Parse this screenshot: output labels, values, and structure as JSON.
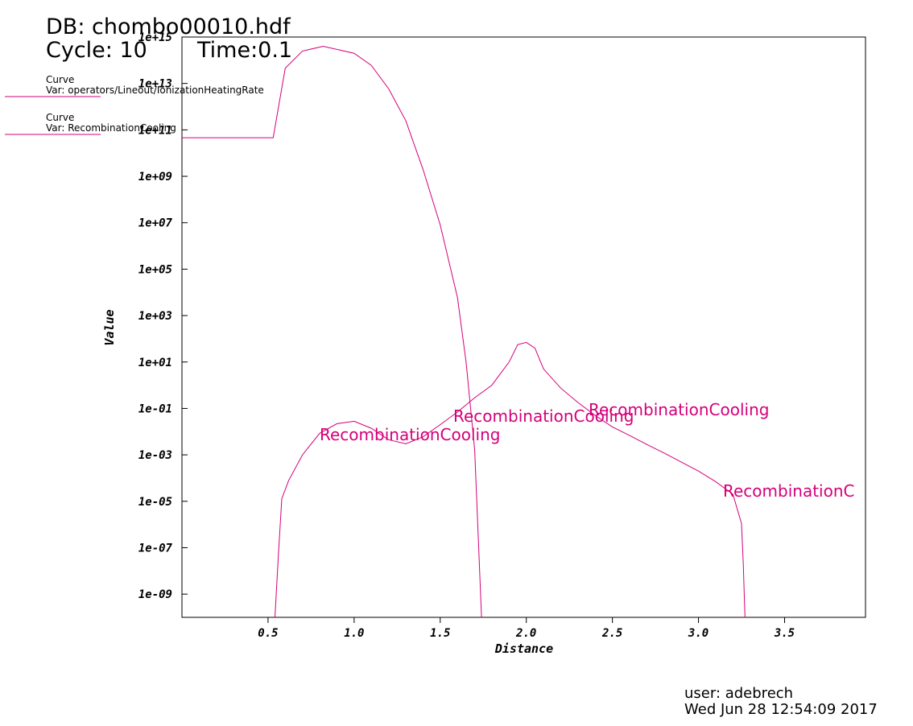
{
  "chart_data": {
    "type": "line",
    "title": "DB: chombo00010.hdf",
    "cycle": "Cycle: 10",
    "time": "Time:0.1",
    "xlabel": "Distance",
    "ylabel": "Value",
    "yscale": "log",
    "xlim": [
      0,
      3.97
    ],
    "ylim": [
      1e-10,
      1000000000000000.0
    ],
    "xticks": [
      0.5,
      {
        "value": 1,
        "label": "1.0"
      },
      1.5,
      {
        "value": 2,
        "label": "2.0"
      },
      2.5,
      {
        "value": 3,
        "label": "3.0"
      },
      3.5
    ],
    "yticks": [
      {
        "value": 1000000000000000.0,
        "label": "1e+15"
      },
      {
        "value": 10000000000000.0,
        "label": "1e+13"
      },
      {
        "value": 100000000000.0,
        "label": "1e+11"
      },
      {
        "value": 1000000000.0,
        "label": "1e+09"
      },
      {
        "value": 10000000.0,
        "label": "1e+07"
      },
      {
        "value": 100000.0,
        "label": "1e+05"
      },
      {
        "value": 1000.0,
        "label": "1e+03"
      },
      {
        "value": 10,
        "label": "1e+01"
      },
      {
        "value": 0.1,
        "label": "1e-01"
      },
      {
        "value": 0.001,
        "label": "1e-03"
      },
      {
        "value": 1e-05,
        "label": "1e-05"
      },
      {
        "value": 1e-07,
        "label": "1e-07"
      },
      {
        "value": 1e-09,
        "label": "1e-09"
      }
    ],
    "series": [
      {
        "plot": "Curve",
        "name": "Var: operators/Lineout/IonizationHeatingRate",
        "color": "#d4007a",
        "x": [
          0,
          0.53,
          0.6,
          0.7,
          0.82,
          1.0,
          1.1,
          1.2,
          1.3,
          1.4,
          1.5,
          1.6,
          1.65,
          1.7,
          1.74
        ],
        "values": [
          46000000000.0,
          46000000000.0,
          45000000000000.0,
          250000000000000.0,
          400000000000000.0,
          200000000000000.0,
          60000000000000.0,
          6000000000000.0,
          250000000000.0,
          2000000000.0,
          8000000.0,
          6000.0,
          10,
          0.0016,
          1e-10
        ]
      },
      {
        "plot": "Curve",
        "name": "Var: RecombinationCooling",
        "color": "#d4007a",
        "x": [
          0.54,
          0.56,
          0.58,
          0.62,
          0.7,
          0.8,
          0.9,
          1.0,
          1.1,
          1.2,
          1.3,
          1.4,
          1.5,
          1.6,
          1.7,
          1.8,
          1.9,
          1.95,
          2.0,
          2.05,
          2.1,
          2.2,
          2.3,
          2.4,
          2.5,
          2.6,
          2.7,
          2.8,
          2.9,
          3.0,
          3.1,
          3.2,
          3.25,
          3.26,
          3.27
        ],
        "values": [
          1e-10,
          5e-08,
          1.3e-05,
          8e-05,
          0.001,
          0.0085,
          0.022,
          0.028,
          0.014,
          0.0045,
          0.003,
          0.006,
          0.02,
          0.07,
          0.29,
          1,
          10,
          56,
          70,
          40,
          5,
          0.75,
          0.18,
          0.05,
          0.016,
          0.0068,
          0.0028,
          0.0012,
          0.00049,
          0.0002,
          7e-05,
          2e-05,
          1.1e-06,
          2e-08,
          1e-10
        ]
      }
    ],
    "annotations": [
      "RecombinationCooling",
      "RecombinationCooling",
      "RecombinationCooling",
      "RecombinationC"
    ],
    "user": "user: adebrech",
    "timestamp": "Wed Jun 28 12:54:09 2017"
  }
}
